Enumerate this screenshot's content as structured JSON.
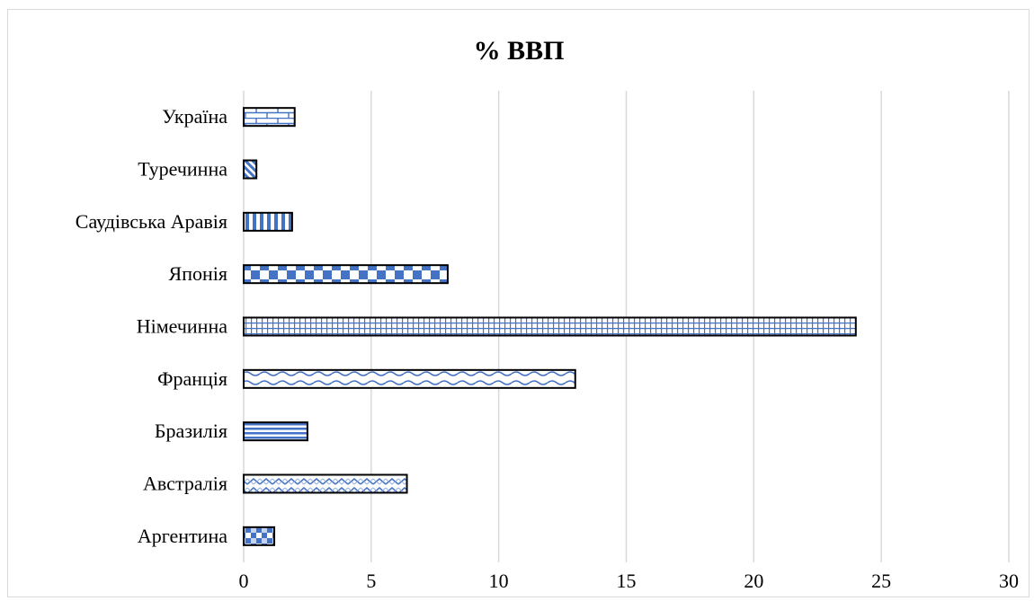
{
  "chart_data": {
    "type": "bar",
    "orientation": "horizontal",
    "title": "% ВВП",
    "categories": [
      "Аргентина",
      "Австралія",
      "Бразилія",
      "Франція",
      "Німечинна",
      "Японія",
      "Саудівська Аравія",
      "Туречинна",
      "Україна"
    ],
    "values": [
      1.2,
      6.4,
      2.5,
      13.0,
      24.0,
      8.0,
      1.9,
      0.5,
      2.0
    ],
    "xlim": [
      0,
      30
    ],
    "xticks": [
      0,
      5,
      10,
      15,
      20,
      25,
      30
    ],
    "grid": "vertical",
    "legend": "none",
    "bar_color": "#4472c4",
    "patterns": [
      "checker-small",
      "zigzag-dense",
      "horizontal-lines",
      "wave",
      "grid-small",
      "checker-large",
      "vertical-lines",
      "diagonal",
      "brick"
    ]
  }
}
